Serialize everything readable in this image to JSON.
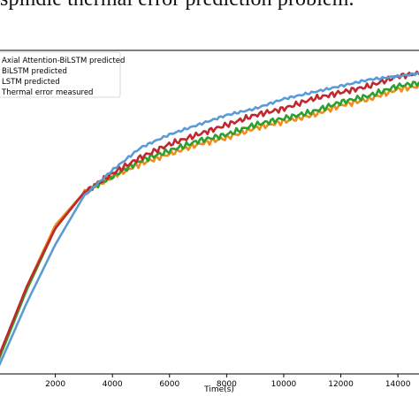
{
  "caption": "spindle thermal error prediction problem.",
  "chart_data": {
    "type": "line",
    "xlabel": "Time(s)",
    "ylabel": "",
    "xlim": [
      0,
      14800
    ],
    "ylim": [
      0,
      100
    ],
    "x_ticks": [
      2000,
      4000,
      6000,
      8000,
      10000,
      12000,
      14000
    ],
    "x_tick_labels": [
      "2000",
      "4000",
      "6000",
      "8000",
      "10000",
      "12000",
      "14000"
    ],
    "legend_position": "top-left",
    "grid": false,
    "series": [
      {
        "name": "Axial Attention-BiLSTM predicted",
        "color": "#5b9bd5",
        "x": [
          0,
          1000,
          2000,
          3000,
          4000,
          5000,
          6000,
          7000,
          8000,
          9000,
          10000,
          11000,
          12000,
          13000,
          14000,
          14800
        ],
        "y": [
          2,
          22,
          40,
          55,
          63,
          70,
          74,
          77,
          80,
          82,
          85,
          87,
          89,
          91,
          92,
          93
        ]
      },
      {
        "name": "BiLSTM predicted",
        "color": "#c0282e",
        "x": [
          0,
          1000,
          2000,
          3000,
          4000,
          5000,
          6000,
          7000,
          8000,
          9000,
          10000,
          11000,
          12000,
          13000,
          14000,
          14800
        ],
        "y": [
          5,
          27,
          45,
          56,
          62,
          67,
          71,
          74,
          77,
          80,
          82,
          85,
          87,
          89,
          92,
          93
        ]
      },
      {
        "name": "LSTM predicted",
        "color": "#2ca02c",
        "x": [
          0,
          1000,
          2000,
          3000,
          4000,
          5000,
          6000,
          7000,
          8000,
          9000,
          10000,
          11000,
          12000,
          13000,
          14000,
          14800
        ],
        "y": [
          4,
          26,
          45,
          56,
          61,
          66,
          69,
          72,
          74,
          77,
          79,
          81,
          84,
          86,
          89,
          90
        ]
      },
      {
        "name": "Thermal error measured",
        "color": "#f08c1e",
        "x": [
          0,
          1000,
          2000,
          3000,
          4000,
          5000,
          6000,
          7000,
          8000,
          9000,
          10000,
          11000,
          12000,
          13000,
          14000,
          14800
        ],
        "y": [
          5,
          27,
          46,
          56,
          61,
          65,
          68,
          71,
          73,
          76,
          78,
          80,
          83,
          85,
          88,
          89
        ]
      }
    ]
  }
}
